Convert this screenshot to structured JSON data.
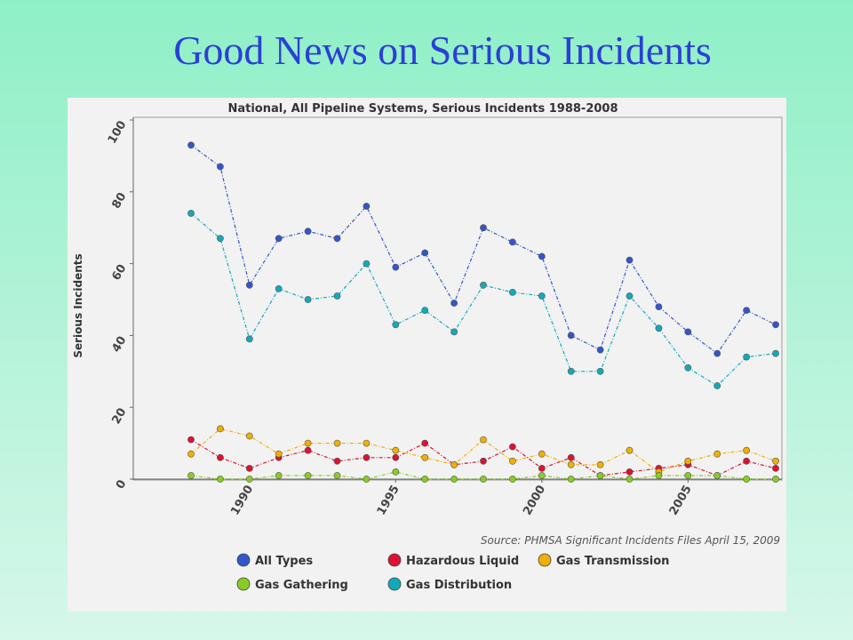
{
  "slide": {
    "title": "Good News on Serious Incidents"
  },
  "chart_data": {
    "type": "line",
    "title": "National, All Pipeline Systems, Serious Incidents 1988-2008",
    "xlabel": "",
    "ylabel": "Serious Incidents",
    "ylim": [
      0,
      100
    ],
    "yticks": [
      0,
      20,
      40,
      60,
      80,
      100
    ],
    "xticks": [
      1990,
      1995,
      2000,
      2005
    ],
    "x": [
      1988,
      1989,
      1990,
      1991,
      1992,
      1993,
      1994,
      1995,
      1996,
      1997,
      1998,
      1999,
      2000,
      2001,
      2002,
      2003,
      2004,
      2005,
      2006,
      2007,
      2008
    ],
    "series": [
      {
        "name": "All Types",
        "color": "#3355cc",
        "values": [
          93,
          87,
          54,
          67,
          69,
          67,
          76,
          59,
          63,
          49,
          70,
          66,
          62,
          40,
          36,
          61,
          48,
          41,
          35,
          47,
          43
        ]
      },
      {
        "name": "Hazardous Liquid",
        "color": "#dd1133",
        "values": [
          11,
          6,
          3,
          6,
          8,
          5,
          6,
          6,
          10,
          4,
          5,
          9,
          3,
          6,
          1,
          2,
          3,
          4,
          1,
          5,
          3
        ]
      },
      {
        "name": "Gas Transmission",
        "color": "#f0b000",
        "values": [
          7,
          14,
          12,
          7,
          10,
          10,
          10,
          8,
          6,
          4,
          11,
          5,
          7,
          4,
          4,
          8,
          2,
          5,
          7,
          8,
          5
        ]
      },
      {
        "name": "Gas Gathering",
        "color": "#88cc22",
        "values": [
          1,
          0,
          0,
          1,
          1,
          1,
          0,
          2,
          0,
          0,
          0,
          0,
          1,
          0,
          1,
          0,
          1,
          1,
          1,
          0,
          0
        ]
      },
      {
        "name": "Gas Distribution",
        "color": "#11aabb",
        "values": [
          74,
          67,
          39,
          53,
          50,
          51,
          60,
          43,
          47,
          41,
          54,
          52,
          51,
          30,
          30,
          51,
          42,
          31,
          26,
          34,
          35
        ]
      }
    ],
    "source": "Source: PHMSA Significant Incidents Files April 15, 2009",
    "grid": false,
    "legend_position": "bottom"
  }
}
